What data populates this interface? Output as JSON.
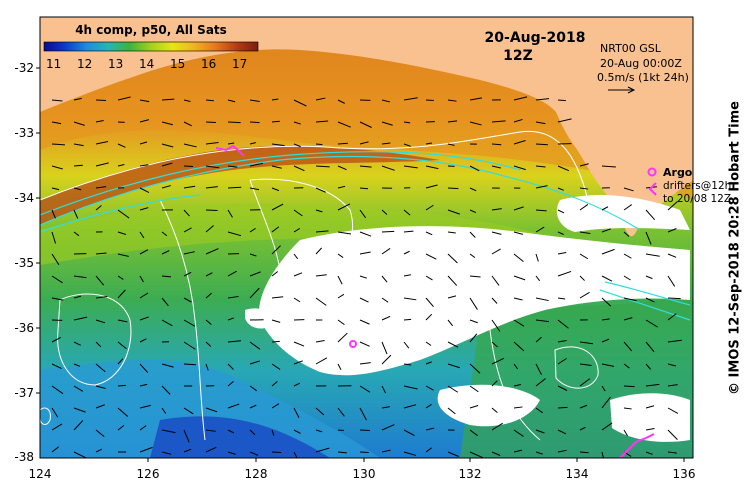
{
  "map": {
    "title": "4h comp, p50, All Sats",
    "date": "20-Aug-2018",
    "time": "12Z",
    "colorbar": {
      "ticks": [
        "11",
        "12",
        "13",
        "14",
        "15",
        "16",
        "17"
      ],
      "colors": [
        "#0a0a8c",
        "#0a3cc8",
        "#1e8cdc",
        "#28b4b4",
        "#3cb43c",
        "#a0d21e",
        "#e6e614",
        "#f0b41e",
        "#e6781e",
        "#b43c14",
        "#7a1e0e"
      ]
    },
    "current_ref": {
      "source": "NRT00 GSL",
      "date": "20-Aug 00:00Z",
      "scale": "0.5m/s (1kt 24h)"
    },
    "legend": {
      "argo_label": "Argo",
      "drifters_line1": "drifters@12h",
      "drifters_line2": "to 20/08 12Z"
    },
    "credit": "© IMOS 12-Sep-2018 20:28 Hobart Time",
    "lon_ticks": [
      "124",
      "126",
      "128",
      "130",
      "132",
      "134",
      "136"
    ],
    "lat_ticks": [
      "-32",
      "-33",
      "-34",
      "-35",
      "-36",
      "-37",
      "-38"
    ],
    "colors": {
      "land": "#f9c18f",
      "cloud": "#ffffff",
      "argo": "#ff33ff",
      "contour": "#ffffff",
      "cyan_contour": "#33dddd"
    }
  }
}
